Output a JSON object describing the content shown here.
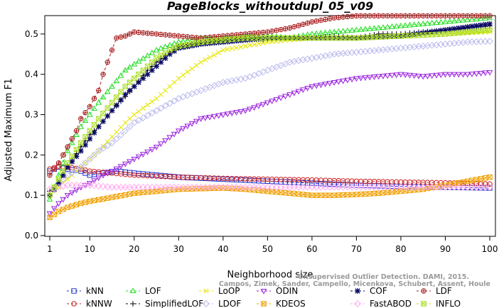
{
  "chart_data": {
    "type": "line",
    "title": "PageBlocks_withoutdupl_05_v09",
    "xlabel": "Neighborhood size",
    "ylabel": "Adjusted Maximum F1",
    "xlim": [
      1,
      100
    ],
    "ylim": [
      0.0,
      0.55
    ],
    "xticks": [
      1,
      10,
      20,
      30,
      40,
      50,
      60,
      70,
      80,
      90,
      100
    ],
    "yticks": [
      "0.0",
      "0.1",
      "0.2",
      "0.3",
      "0.4",
      "0.5"
    ],
    "grid": false,
    "legend_position": "bottom",
    "watermark": [
      "Unsupervised Outlier Detection. DAMI, 2015.",
      "Campos, Zimek, Sander, Campello, Micenkova, Schubert, Assent, Houle"
    ],
    "series": [
      {
        "name": "kNN",
        "color": "#2233cc",
        "marker": "square",
        "points": [
          [
            1,
            0.16
          ],
          [
            3,
            0.17
          ],
          [
            5,
            0.165
          ],
          [
            8,
            0.16
          ],
          [
            10,
            0.15
          ],
          [
            13,
            0.155
          ],
          [
            16,
            0.16
          ],
          [
            20,
            0.155
          ],
          [
            25,
            0.15
          ],
          [
            30,
            0.145
          ],
          [
            40,
            0.14
          ],
          [
            50,
            0.135
          ],
          [
            60,
            0.13
          ],
          [
            70,
            0.125
          ],
          [
            80,
            0.122
          ],
          [
            90,
            0.12
          ],
          [
            100,
            0.118
          ]
        ]
      },
      {
        "name": "kNNW",
        "color": "#cc2222",
        "marker": "circle",
        "points": [
          [
            1,
            0.165
          ],
          [
            3,
            0.172
          ],
          [
            5,
            0.17
          ],
          [
            8,
            0.165
          ],
          [
            10,
            0.16
          ],
          [
            15,
            0.155
          ],
          [
            20,
            0.15
          ],
          [
            30,
            0.145
          ],
          [
            40,
            0.142
          ],
          [
            50,
            0.14
          ],
          [
            60,
            0.138
          ],
          [
            70,
            0.135
          ],
          [
            80,
            0.133
          ],
          [
            90,
            0.131
          ],
          [
            100,
            0.128
          ]
        ]
      },
      {
        "name": "LOF",
        "color": "#22dd22",
        "marker": "triangle-up",
        "points": [
          [
            1,
            0.09
          ],
          [
            3,
            0.15
          ],
          [
            5,
            0.21
          ],
          [
            8,
            0.27
          ],
          [
            10,
            0.3
          ],
          [
            12,
            0.33
          ],
          [
            15,
            0.37
          ],
          [
            18,
            0.41
          ],
          [
            20,
            0.425
          ],
          [
            25,
            0.46
          ],
          [
            30,
            0.48
          ],
          [
            35,
            0.49
          ],
          [
            40,
            0.49
          ],
          [
            45,
            0.495
          ],
          [
            50,
            0.495
          ],
          [
            55,
            0.49
          ],
          [
            60,
            0.5
          ],
          [
            65,
            0.505
          ],
          [
            70,
            0.51
          ],
          [
            75,
            0.515
          ],
          [
            80,
            0.52
          ],
          [
            85,
            0.525
          ],
          [
            90,
            0.53
          ],
          [
            95,
            0.535
          ],
          [
            100,
            0.54
          ]
        ]
      },
      {
        "name": "SimplifiedLOF",
        "color": "#000000",
        "marker": "plus",
        "points": [
          [
            1,
            0.11
          ],
          [
            3,
            0.13
          ],
          [
            5,
            0.17
          ],
          [
            8,
            0.22
          ],
          [
            10,
            0.25
          ],
          [
            12,
            0.27
          ],
          [
            15,
            0.31
          ],
          [
            18,
            0.345
          ],
          [
            20,
            0.37
          ],
          [
            23,
            0.41
          ],
          [
            25,
            0.43
          ],
          [
            28,
            0.455
          ],
          [
            30,
            0.47
          ],
          [
            35,
            0.48
          ],
          [
            40,
            0.485
          ],
          [
            45,
            0.49
          ],
          [
            50,
            0.485
          ],
          [
            55,
            0.49
          ],
          [
            60,
            0.49
          ],
          [
            65,
            0.495
          ],
          [
            70,
            0.49
          ],
          [
            75,
            0.5
          ],
          [
            80,
            0.5
          ],
          [
            85,
            0.505
          ],
          [
            90,
            0.51
          ],
          [
            95,
            0.515
          ],
          [
            100,
            0.52
          ]
        ]
      },
      {
        "name": "LoOP",
        "color": "#e6e600",
        "marker": "x",
        "points": [
          [
            1,
            0.1
          ],
          [
            3,
            0.12
          ],
          [
            5,
            0.14
          ],
          [
            8,
            0.17
          ],
          [
            10,
            0.19
          ],
          [
            12,
            0.21
          ],
          [
            15,
            0.245
          ],
          [
            18,
            0.28
          ],
          [
            20,
            0.3
          ],
          [
            25,
            0.34
          ],
          [
            28,
            0.37
          ],
          [
            30,
            0.39
          ],
          [
            35,
            0.43
          ],
          [
            40,
            0.46
          ],
          [
            45,
            0.47
          ],
          [
            50,
            0.48
          ],
          [
            55,
            0.485
          ],
          [
            60,
            0.49
          ],
          [
            70,
            0.49
          ],
          [
            80,
            0.495
          ],
          [
            90,
            0.5
          ],
          [
            100,
            0.505
          ]
        ]
      },
      {
        "name": "LDOF",
        "color": "#bbbbee",
        "marker": "diamond",
        "points": [
          [
            1,
            0.1
          ],
          [
            3,
            0.13
          ],
          [
            5,
            0.15
          ],
          [
            8,
            0.17
          ],
          [
            10,
            0.19
          ],
          [
            12,
            0.21
          ],
          [
            15,
            0.23
          ],
          [
            18,
            0.26
          ],
          [
            20,
            0.28
          ],
          [
            25,
            0.31
          ],
          [
            30,
            0.34
          ],
          [
            35,
            0.36
          ],
          [
            40,
            0.38
          ],
          [
            45,
            0.39
          ],
          [
            50,
            0.41
          ],
          [
            55,
            0.43
          ],
          [
            60,
            0.44
          ],
          [
            65,
            0.45
          ],
          [
            70,
            0.455
          ],
          [
            75,
            0.46
          ],
          [
            80,
            0.465
          ],
          [
            85,
            0.47
          ],
          [
            90,
            0.475
          ],
          [
            95,
            0.48
          ],
          [
            100,
            0.482
          ]
        ]
      },
      {
        "name": "ODIN",
        "color": "#9922dd",
        "marker": "triangle-down",
        "points": [
          [
            1,
            0.055
          ],
          [
            3,
            0.08
          ],
          [
            5,
            0.1
          ],
          [
            8,
            0.12
          ],
          [
            10,
            0.13
          ],
          [
            13,
            0.15
          ],
          [
            15,
            0.16
          ],
          [
            20,
            0.19
          ],
          [
            25,
            0.22
          ],
          [
            30,
            0.26
          ],
          [
            35,
            0.29
          ],
          [
            40,
            0.3
          ],
          [
            45,
            0.31
          ],
          [
            50,
            0.33
          ],
          [
            55,
            0.35
          ],
          [
            60,
            0.37
          ],
          [
            65,
            0.38
          ],
          [
            70,
            0.39
          ],
          [
            75,
            0.395
          ],
          [
            80,
            0.4
          ],
          [
            85,
            0.395
          ],
          [
            90,
            0.4
          ],
          [
            95,
            0.4
          ],
          [
            100,
            0.405
          ]
        ]
      },
      {
        "name": "KDEOS",
        "color": "#f0a000",
        "marker": "square-x",
        "points": [
          [
            1,
            0.045
          ],
          [
            3,
            0.06
          ],
          [
            5,
            0.07
          ],
          [
            8,
            0.08
          ],
          [
            10,
            0.085
          ],
          [
            15,
            0.095
          ],
          [
            20,
            0.105
          ],
          [
            25,
            0.11
          ],
          [
            30,
            0.115
          ],
          [
            40,
            0.118
          ],
          [
            45,
            0.115
          ],
          [
            50,
            0.11
          ],
          [
            55,
            0.105
          ],
          [
            60,
            0.1
          ],
          [
            65,
            0.1
          ],
          [
            70,
            0.102
          ],
          [
            75,
            0.105
          ],
          [
            80,
            0.11
          ],
          [
            85,
            0.115
          ],
          [
            90,
            0.125
          ],
          [
            95,
            0.135
          ],
          [
            100,
            0.145
          ]
        ]
      },
      {
        "name": "COF",
        "color": "#0a0a66",
        "marker": "asterisk",
        "points": [
          [
            1,
            0.1
          ],
          [
            3,
            0.13
          ],
          [
            5,
            0.17
          ],
          [
            8,
            0.21
          ],
          [
            10,
            0.24
          ],
          [
            12,
            0.27
          ],
          [
            15,
            0.31
          ],
          [
            18,
            0.35
          ],
          [
            20,
            0.37
          ],
          [
            23,
            0.4
          ],
          [
            25,
            0.42
          ],
          [
            28,
            0.45
          ],
          [
            30,
            0.465
          ],
          [
            35,
            0.475
          ],
          [
            40,
            0.48
          ],
          [
            45,
            0.485
          ],
          [
            50,
            0.49
          ],
          [
            60,
            0.49
          ],
          [
            70,
            0.49
          ],
          [
            80,
            0.495
          ],
          [
            90,
            0.51
          ],
          [
            100,
            0.525
          ]
        ]
      },
      {
        "name": "FastABOD",
        "color": "#ffaaee",
        "marker": "diamond",
        "points": [
          [
            1,
            0.115
          ],
          [
            3,
            0.12
          ],
          [
            5,
            0.125
          ],
          [
            10,
            0.125
          ],
          [
            15,
            0.12
          ],
          [
            20,
            0.12
          ],
          [
            25,
            0.12
          ],
          [
            30,
            0.12
          ],
          [
            40,
            0.12
          ],
          [
            50,
            0.12
          ],
          [
            60,
            0.12
          ],
          [
            70,
            0.12
          ],
          [
            80,
            0.12
          ],
          [
            90,
            0.12
          ],
          [
            100,
            0.12
          ]
        ]
      },
      {
        "name": "LDF",
        "color": "#aa2222",
        "marker": "circle-plus",
        "points": [
          [
            1,
            0.15
          ],
          [
            3,
            0.18
          ],
          [
            5,
            0.22
          ],
          [
            7,
            0.26
          ],
          [
            8,
            0.29
          ],
          [
            10,
            0.32
          ],
          [
            12,
            0.36
          ],
          [
            13,
            0.4
          ],
          [
            14,
            0.43
          ],
          [
            16,
            0.49
          ],
          [
            18,
            0.495
          ],
          [
            20,
            0.505
          ],
          [
            25,
            0.5
          ],
          [
            30,
            0.495
          ],
          [
            35,
            0.49
          ],
          [
            40,
            0.495
          ],
          [
            45,
            0.5
          ],
          [
            50,
            0.505
          ],
          [
            55,
            0.515
          ],
          [
            60,
            0.53
          ],
          [
            65,
            0.54
          ],
          [
            70,
            0.545
          ],
          [
            75,
            0.545
          ],
          [
            80,
            0.545
          ],
          [
            90,
            0.545
          ],
          [
            100,
            0.545
          ]
        ]
      },
      {
        "name": "INFLO",
        "color": "#aadd22",
        "marker": "square-x",
        "points": [
          [
            1,
            0.1
          ],
          [
            3,
            0.14
          ],
          [
            5,
            0.18
          ],
          [
            8,
            0.23
          ],
          [
            10,
            0.26
          ],
          [
            12,
            0.29
          ],
          [
            15,
            0.33
          ],
          [
            18,
            0.37
          ],
          [
            20,
            0.39
          ],
          [
            23,
            0.42
          ],
          [
            25,
            0.44
          ],
          [
            28,
            0.46
          ],
          [
            30,
            0.47
          ],
          [
            35,
            0.48
          ],
          [
            40,
            0.485
          ],
          [
            45,
            0.49
          ],
          [
            50,
            0.49
          ],
          [
            60,
            0.49
          ],
          [
            70,
            0.49
          ],
          [
            80,
            0.495
          ],
          [
            90,
            0.5
          ],
          [
            100,
            0.51
          ]
        ]
      }
    ]
  }
}
